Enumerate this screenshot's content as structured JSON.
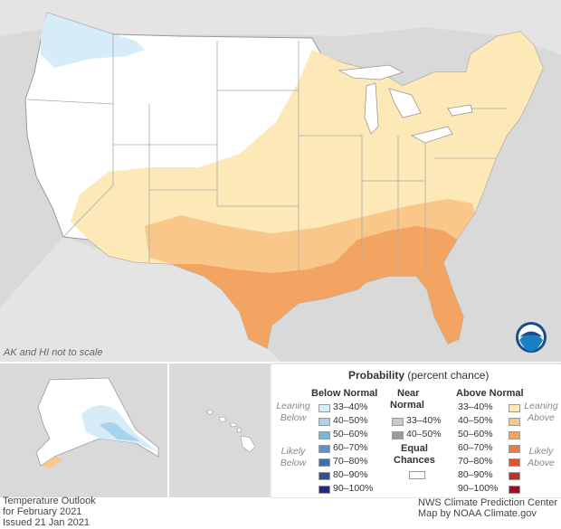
{
  "map": {
    "note": "AK and HI not to scale",
    "colors": {
      "land": "#ffffff",
      "outside": "#d9d9d9",
      "water": "#ffffff",
      "border": "#999999",
      "below_33_40": "#d6ecf8",
      "below_40_50": "#a9d3ec",
      "above_33_40": "#fde8b8",
      "above_40_50": "#f9c78a",
      "above_50_60": "#f4a462"
    }
  },
  "legend": {
    "title": "Probability",
    "title_suffix": "(percent chance)",
    "below": {
      "header": "Below Normal",
      "leaning": "Leaning Below",
      "likely": "Likely Below",
      "bins": [
        {
          "label": "33–40%",
          "color": "#d6ecf8"
        },
        {
          "label": "40–50%",
          "color": "#a9d3ec"
        },
        {
          "label": "50–60%",
          "color": "#7fb3da"
        },
        {
          "label": "60–70%",
          "color": "#5b93c9"
        },
        {
          "label": "70–80%",
          "color": "#3f6fb1"
        },
        {
          "label": "80–90%",
          "color": "#2f4f9a"
        },
        {
          "label": "90–100%",
          "color": "#222b7f"
        }
      ]
    },
    "near": {
      "header_line1": "Near",
      "header_line2": "Normal",
      "bins": [
        {
          "label": "33–40%",
          "color": "#c9c9c9"
        },
        {
          "label": "40–50%",
          "color": "#9a9a9a"
        }
      ]
    },
    "equal": {
      "label_line1": "Equal",
      "label_line2": "Chances",
      "color": "#ffffff"
    },
    "above": {
      "header": "Above Normal",
      "leaning": "Leaning Above",
      "likely": "Likely Above",
      "bins": [
        {
          "label": "33–40%",
          "color": "#fde8b8"
        },
        {
          "label": "40–50%",
          "color": "#f9c78a"
        },
        {
          "label": "50–60%",
          "color": "#f4a462"
        },
        {
          "label": "60–70%",
          "color": "#ee7a41"
        },
        {
          "label": "70–80%",
          "color": "#e2542f"
        },
        {
          "label": "80–90%",
          "color": "#c92a26"
        },
        {
          "label": "90–100%",
          "color": "#9c0f1f"
        }
      ]
    }
  },
  "footer": {
    "left_line1": "Temperature Outlook",
    "left_line2": "for February 2021",
    "left_line3": "Issued 21 Jan 2021",
    "right_line1": "NWS Climate Prediction Center",
    "right_line2": "Map by NOAA Climate.gov"
  },
  "logo": {
    "text": "NOAA"
  }
}
